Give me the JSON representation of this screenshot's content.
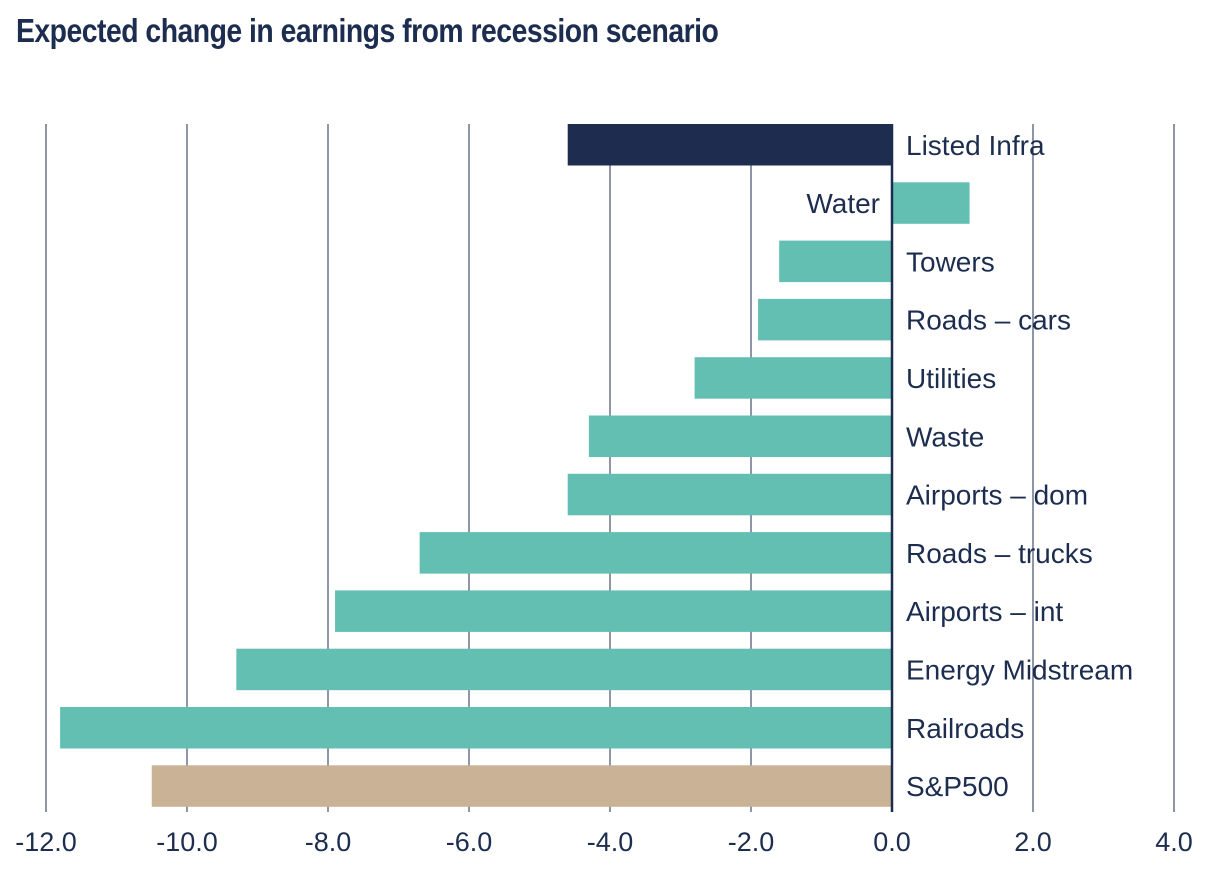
{
  "chart_data": {
    "type": "bar",
    "orientation": "horizontal",
    "title": "Expected change in earnings from recession scenario",
    "xlabel": "",
    "ylabel": "",
    "xlim": [
      -12,
      4
    ],
    "x_ticks": [
      "-12.0",
      "-10.0",
      "-8.0",
      "-6.0",
      "-4.0",
      "-2.0",
      "0.0",
      "2.0",
      "4.0"
    ],
    "x_tick_values": [
      -12,
      -10,
      -8,
      -6,
      -4,
      -2,
      0,
      2,
      4
    ],
    "grid": true,
    "legend": "none",
    "categories": [
      "Listed Infra",
      "Water",
      "Towers",
      "Roads – cars",
      "Utilities",
      "Waste",
      "Airports – dom",
      "Roads – trucks",
      "Airports – int",
      "Energy Midstream",
      "Railroads",
      "S&P500"
    ],
    "values": [
      -4.6,
      1.1,
      -1.6,
      -1.9,
      -2.8,
      -4.3,
      -4.6,
      -6.7,
      -7.9,
      -9.3,
      -11.8,
      -10.5
    ],
    "colors": [
      "#1e2d4f",
      "#62bfb2",
      "#62bfb2",
      "#62bfb2",
      "#62bfb2",
      "#62bfb2",
      "#62bfb2",
      "#62bfb2",
      "#62bfb2",
      "#62bfb2",
      "#62bfb2",
      "#c9b296"
    ]
  }
}
